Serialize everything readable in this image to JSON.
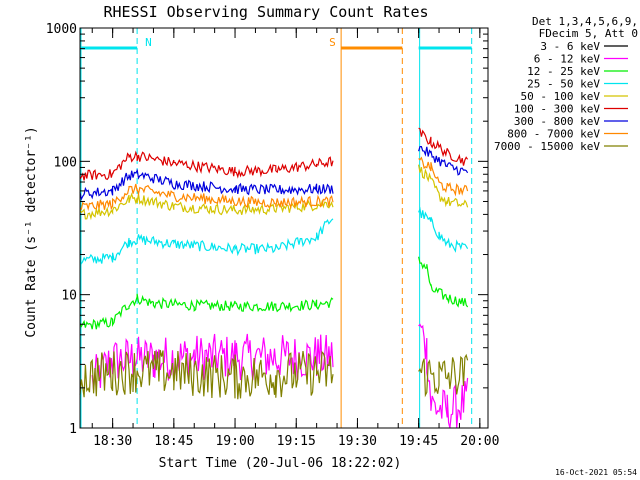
{
  "chart_data": {
    "type": "line",
    "title": "RHESSI Observing Summary Count Rates",
    "xlabel": "Start Time (20-Jul-06 18:22:02)",
    "ylabel": "Count Rate (s⁻¹ detector⁻¹)",
    "yscale": "log",
    "ylim": [
      1,
      1000
    ],
    "xlim": [
      "18:22",
      "20:02"
    ],
    "x_ticks": [
      "18:30",
      "18:45",
      "19:00",
      "19:15",
      "19:30",
      "19:45",
      "20:00"
    ],
    "y_ticks": [
      "1",
      "10",
      "100",
      "1000"
    ],
    "legend_header": [
      "Det 1,3,4,5,6,9,",
      "FDecim 5, Att 0"
    ],
    "legend_position": "right",
    "flags": [
      {
        "label": "N",
        "color": "#00e5ee",
        "segments": [
          [
            "18:22",
            "18:36"
          ],
          [
            "19:45",
            "19:58"
          ]
        ]
      },
      {
        "label": "S",
        "color": "#ff8c00",
        "segments": [
          [
            "19:26",
            "19:41"
          ]
        ]
      }
    ],
    "night_markers": {
      "solid": [
        "18:22",
        "19:45"
      ],
      "dashed": [
        "18:36",
        "19:58"
      ],
      "color": "#00e5ee"
    },
    "saa_markers": {
      "solid": [
        "19:26"
      ],
      "dashed": [
        "19:41"
      ],
      "color": "#ff8c00"
    },
    "gaps": [
      [
        "19:25",
        "19:45"
      ]
    ],
    "series": [
      {
        "name": "3 - 6 keV",
        "color": "#000000",
        "points": []
      },
      {
        "name": "6 - 12 keV",
        "color": "#ff00ff",
        "points": [
          [
            "18:25",
            2.2
          ],
          [
            "18:30",
            3.2
          ],
          [
            "18:35",
            3.3
          ],
          [
            "18:40",
            3.3
          ],
          [
            "18:50",
            3.4
          ],
          [
            "19:00",
            3.4
          ],
          [
            "19:10",
            3.4
          ],
          [
            "19:20",
            3.4
          ],
          [
            "19:24",
            3.4
          ],
          [
            "19:45",
            5.8
          ],
          [
            "19:46",
            5.6
          ],
          [
            "19:47",
            3.8
          ],
          [
            "19:48",
            1.5
          ],
          [
            "19:52",
            1.3
          ],
          [
            "19:57",
            1.6
          ]
        ]
      },
      {
        "name": "12 - 25 keV",
        "color": "#00ee00",
        "points": [
          [
            "18:22",
            5.8
          ],
          [
            "18:30",
            6.2
          ],
          [
            "18:34",
            8.5
          ],
          [
            "18:36",
            9.4
          ],
          [
            "18:40",
            8.6
          ],
          [
            "18:50",
            8.3
          ],
          [
            "19:00",
            8.2
          ],
          [
            "19:10",
            8.2
          ],
          [
            "19:20",
            8.4
          ],
          [
            "19:24",
            8.8
          ],
          [
            "19:45",
            18
          ],
          [
            "19:47",
            16
          ],
          [
            "19:48",
            11
          ],
          [
            "19:52",
            9.5
          ],
          [
            "19:57",
            8.5
          ]
        ]
      },
      {
        "name": "25 - 50 keV",
        "color": "#00e5ee",
        "points": [
          [
            "18:22",
            18
          ],
          [
            "18:30",
            19
          ],
          [
            "18:34",
            25
          ],
          [
            "18:36",
            26
          ],
          [
            "18:45",
            24
          ],
          [
            "19:00",
            22
          ],
          [
            "19:10",
            22
          ],
          [
            "19:20",
            27
          ],
          [
            "19:24",
            38
          ],
          [
            "19:45",
            42
          ],
          [
            "19:48",
            35
          ],
          [
            "19:50",
            28
          ],
          [
            "19:52",
            24
          ],
          [
            "19:57",
            22
          ]
        ]
      },
      {
        "name": "50 - 100 keV",
        "color": "#d4c400",
        "points": [
          [
            "18:22",
            40
          ],
          [
            "18:30",
            43
          ],
          [
            "18:34",
            52
          ],
          [
            "18:36",
            53
          ],
          [
            "18:45",
            46
          ],
          [
            "19:00",
            43
          ],
          [
            "19:10",
            44
          ],
          [
            "19:20",
            47
          ],
          [
            "19:24",
            49
          ],
          [
            "19:45",
            88
          ],
          [
            "19:47",
            78
          ],
          [
            "19:50",
            55
          ],
          [
            "19:52",
            50
          ],
          [
            "19:57",
            46
          ]
        ]
      },
      {
        "name": "100 - 300 keV",
        "color": "#dd0000",
        "points": [
          [
            "18:22",
            78
          ],
          [
            "18:30",
            80
          ],
          [
            "18:34",
            108
          ],
          [
            "18:36",
            110
          ],
          [
            "18:45",
            97
          ],
          [
            "19:00",
            84
          ],
          [
            "19:10",
            86
          ],
          [
            "19:20",
            95
          ],
          [
            "19:24",
            100
          ],
          [
            "19:45",
            165
          ],
          [
            "19:48",
            140
          ],
          [
            "19:52",
            115
          ],
          [
            "19:57",
            98
          ]
        ]
      },
      {
        "name": "300 - 800 keV",
        "color": "#0000dd",
        "points": [
          [
            "18:22",
            57
          ],
          [
            "18:30",
            60
          ],
          [
            "18:34",
            78
          ],
          [
            "18:36",
            80
          ],
          [
            "18:45",
            68
          ],
          [
            "19:00",
            62
          ],
          [
            "19:10",
            61
          ],
          [
            "19:20",
            62
          ],
          [
            "19:24",
            62
          ],
          [
            "19:45",
            128
          ],
          [
            "19:48",
            112
          ],
          [
            "19:52",
            92
          ],
          [
            "19:57",
            82
          ]
        ]
      },
      {
        "name": "800 - 7000 keV",
        "color": "#ff8800",
        "points": [
          [
            "18:22",
            45
          ],
          [
            "18:30",
            48
          ],
          [
            "18:34",
            61
          ],
          [
            "18:36",
            62
          ],
          [
            "18:45",
            55
          ],
          [
            "19:00",
            50
          ],
          [
            "19:10",
            49
          ],
          [
            "19:20",
            50
          ],
          [
            "19:24",
            50
          ],
          [
            "19:45",
            100
          ],
          [
            "19:48",
            90
          ],
          [
            "19:50",
            68
          ],
          [
            "19:52",
            63
          ],
          [
            "19:57",
            60
          ]
        ]
      },
      {
        "name": "7000 - 15000 keV",
        "color": "#808000",
        "points": [
          [
            "18:22",
            2.4
          ],
          [
            "18:30",
            2.6
          ],
          [
            "18:35",
            2.7
          ],
          [
            "18:45",
            2.6
          ],
          [
            "19:00",
            2.4
          ],
          [
            "19:10",
            2.5
          ],
          [
            "19:20",
            2.6
          ],
          [
            "19:24",
            2.6
          ],
          [
            "19:45",
            2.6
          ],
          [
            "19:50",
            2.4
          ],
          [
            "19:57",
            2.5
          ]
        ]
      }
    ],
    "timestamp": "16-Oct-2021 05:54"
  }
}
